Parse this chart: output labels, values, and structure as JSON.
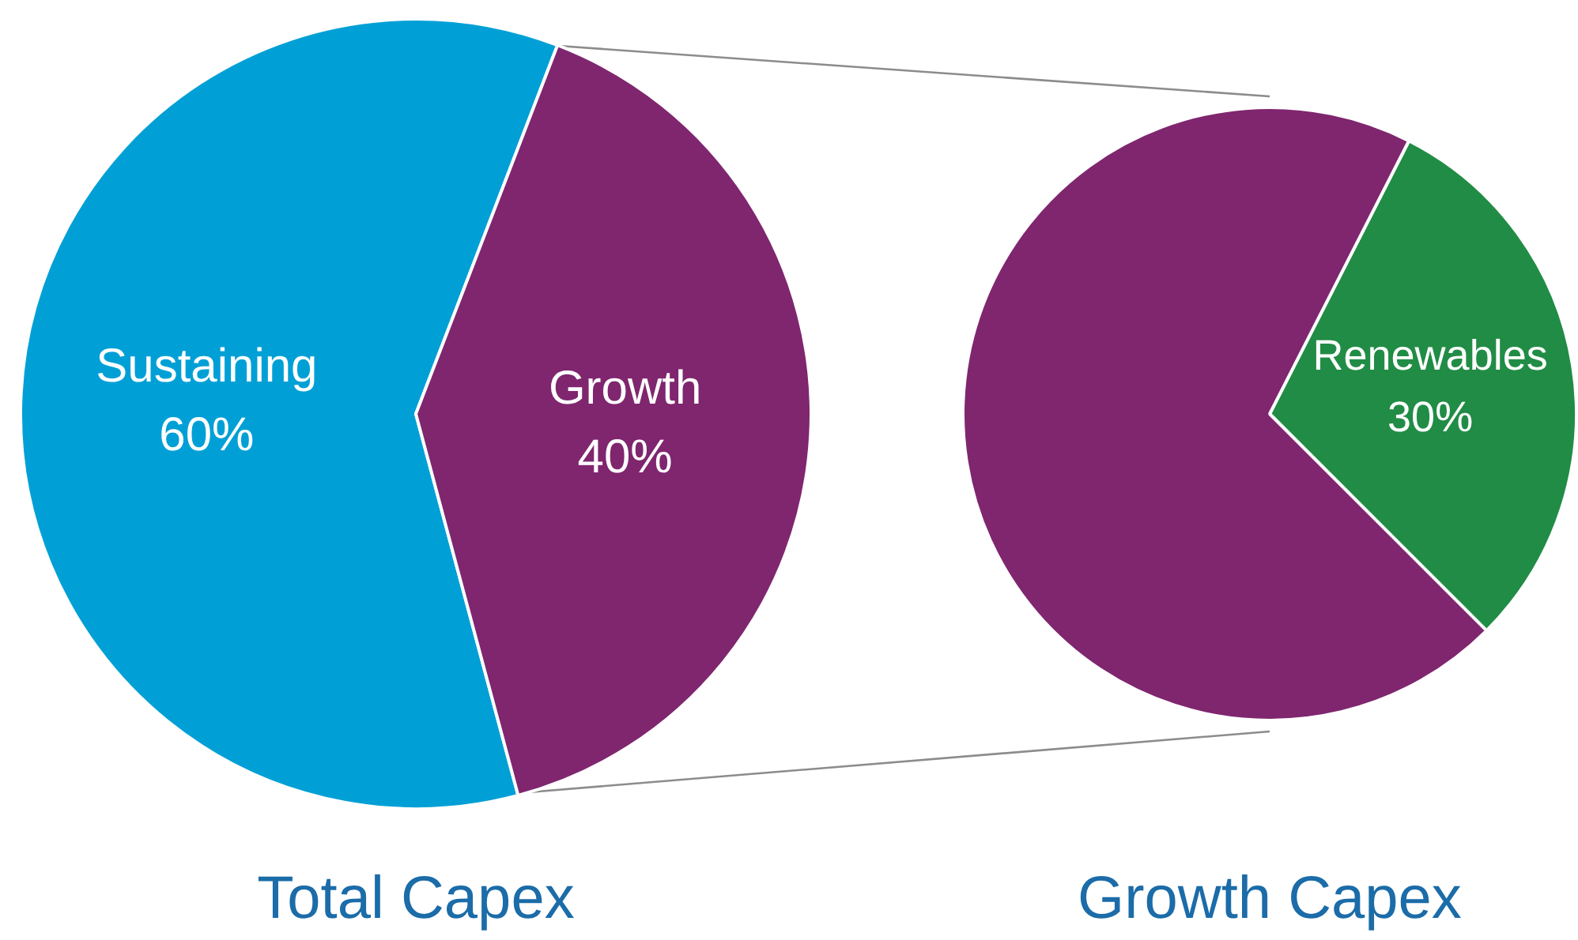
{
  "chart_data": [
    {
      "type": "pie",
      "title": "Total Capex",
      "categories": [
        "Sustaining",
        "Growth"
      ],
      "values": [
        60,
        40
      ],
      "colors": [
        "#00a0d6",
        "#7f266f"
      ],
      "value_labels": [
        "60%",
        "40%"
      ]
    },
    {
      "type": "pie",
      "title": "Growth Capex",
      "categories": [
        "Renewables",
        null
      ],
      "values": [
        30,
        70
      ],
      "colors": [
        "#218c45",
        "#7f266f"
      ],
      "value_labels": [
        "30%",
        null
      ]
    }
  ]
}
